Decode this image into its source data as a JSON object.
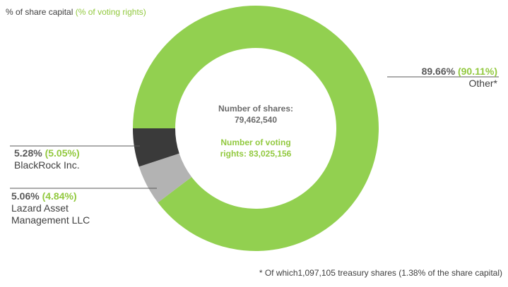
{
  "legend": {
    "capital_label": "% of share capital",
    "voting_label": "(% of voting rights)"
  },
  "center": {
    "shares_label": "Number of shares:",
    "shares_value": "79,462,540",
    "voting_label": "Number  of voting",
    "voting_value": "rights: 83,025,156"
  },
  "colors": {
    "other": "#92d050",
    "blackrock": "#b3b3b3",
    "lazard": "#3a3a3a",
    "green_text": "#92c93f"
  },
  "chart_data": {
    "type": "pie",
    "series": [
      {
        "name": "Other*",
        "share_capital_pct": 89.66,
        "voting_rights_pct": 90.11,
        "share_capital_label": "89.66%",
        "voting_rights_label": "(90.11%)"
      },
      {
        "name": "BlackRock Inc.",
        "share_capital_pct": 5.28,
        "voting_rights_pct": 5.05,
        "share_capital_label": "5.28%",
        "voting_rights_label": "(5.05%)"
      },
      {
        "name": "Lazard Asset Management LLC",
        "name_lines": [
          "Lazard Asset",
          "Management LLC"
        ],
        "share_capital_pct": 5.06,
        "voting_rights_pct": 4.84,
        "share_capital_label": "5.06%",
        "voting_rights_label": "(4.84%)"
      }
    ]
  },
  "footnote": "* Of which1,097,105 treasury shares  (1.38% of the share capital)"
}
